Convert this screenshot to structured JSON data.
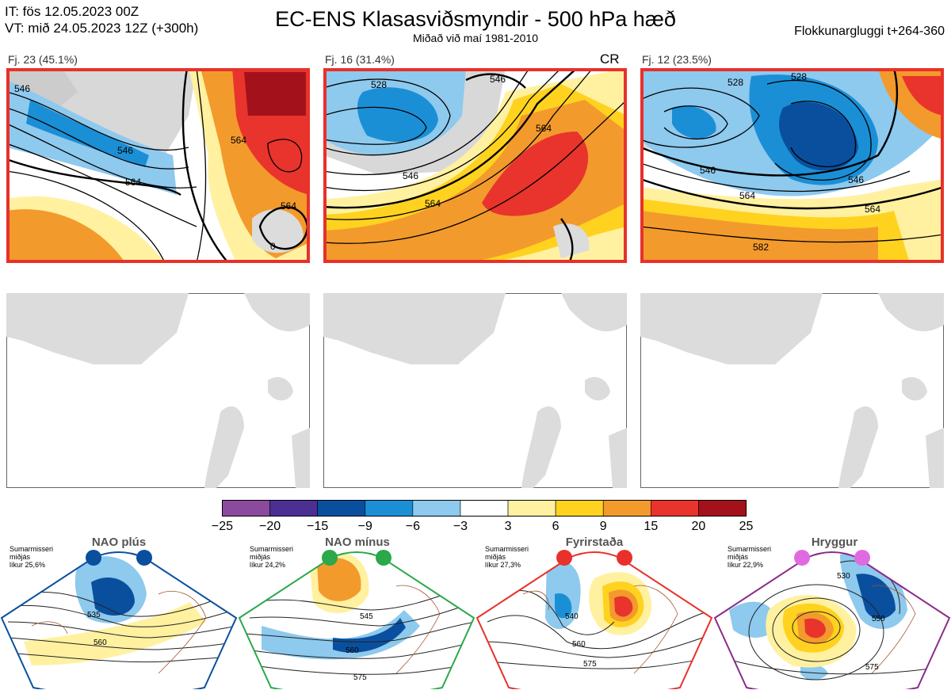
{
  "header": {
    "it_line": "IT: fös 12.05.2023 00Z",
    "vt_line": "VT: mið 24.05.2023 12Z  (+300h)",
    "title": "EC-ENS Klasasviðsmyndir - 500 hPa hæð",
    "subtitle": "Miðað við maí 1981-2010",
    "window": "Flokkunargluggi t+264-360"
  },
  "panels": [
    {
      "label": "Fj. 23 (45.1%)",
      "frame_color": "#e8312a",
      "contours": [
        "546",
        "564",
        "564",
        "564",
        "546",
        "0"
      ]
    },
    {
      "label": "Fj. 16 (31.4%)",
      "frame_color": "#e8312a",
      "tag": "CR",
      "contours": [
        "528",
        "546",
        "564",
        "546",
        "564"
      ]
    },
    {
      "label": "Fj. 12 (23.5%)",
      "frame_color": "#e8312a",
      "contours": [
        "528",
        "528",
        "546",
        "564",
        "564",
        "582",
        "546"
      ]
    }
  ],
  "colorbar": {
    "ticks": [
      "−25",
      "−20",
      "−15",
      "−9",
      "−6",
      "−3",
      "3",
      "6",
      "9",
      "15",
      "20",
      "25"
    ],
    "colors": [
      "#8b4a9e",
      "#4b2f93",
      "#0a4f9e",
      "#1b8fd6",
      "#8ec9ee",
      "#ffffff",
      "#fff1a0",
      "#ffd21f",
      "#f39a2d",
      "#e8342c",
      "#a3121a"
    ]
  },
  "regimes": [
    {
      "name": "NAO plús",
      "season": "Sumarmisseri",
      "mean": "miðjás",
      "prob": "líkur 25,6%",
      "dot_color": "#0a4f9e",
      "frame_color": "#0a4f9e",
      "contours": [
        "535",
        "560"
      ]
    },
    {
      "name": "NAO mínus",
      "season": "Sumarmisseri",
      "mean": "miðjás",
      "prob": "líkur 24,2%",
      "dot_color": "#2aa84a",
      "frame_color": "#2aa84a",
      "contours": [
        "545",
        "560",
        "575"
      ]
    },
    {
      "name": "Fyrirstaða",
      "season": "Sumarmisseri",
      "mean": "miðjás",
      "prob": "líkur 27,3%",
      "dot_color": "#e8312a",
      "frame_color": "#e8312a",
      "contours": [
        "540",
        "560",
        "575"
      ]
    },
    {
      "name": "Hryggur",
      "season": "Sumarmisseri",
      "mean": "miðjás",
      "prob": "líkur 22,9%",
      "dot_color": "#e06be0",
      "frame_color": "#8a2a8a",
      "contours": [
        "530",
        "550",
        "575"
      ]
    }
  ]
}
